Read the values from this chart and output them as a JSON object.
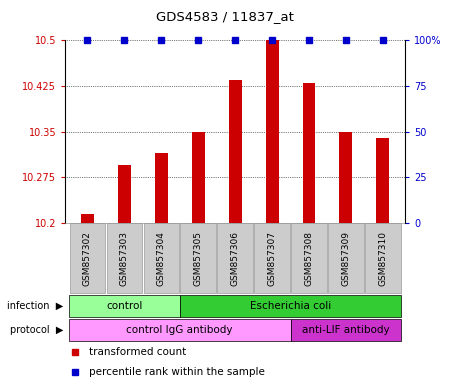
{
  "title": "GDS4583 / 11837_at",
  "samples": [
    "GSM857302",
    "GSM857303",
    "GSM857304",
    "GSM857305",
    "GSM857306",
    "GSM857307",
    "GSM857308",
    "GSM857309",
    "GSM857310"
  ],
  "bar_values": [
    10.215,
    10.295,
    10.315,
    10.35,
    10.435,
    10.5,
    10.43,
    10.35,
    10.34
  ],
  "percentile_values": [
    100,
    100,
    100,
    100,
    100,
    100,
    100,
    100,
    100
  ],
  "bar_color": "#cc0000",
  "percentile_color": "#0000cc",
  "ylim_left": [
    10.2,
    10.5
  ],
  "ylim_right": [
    0,
    100
  ],
  "yticks_left": [
    10.2,
    10.275,
    10.35,
    10.425,
    10.5
  ],
  "yticks_right": [
    0,
    25,
    50,
    75,
    100
  ],
  "ytick_labels_left": [
    "10.2",
    "10.275",
    "10.35",
    "10.425",
    "10.5"
  ],
  "ytick_labels_right": [
    "0",
    "25",
    "50",
    "75",
    "100%"
  ],
  "infection_groups": [
    {
      "label": "control",
      "start": 0,
      "end": 3,
      "color": "#99ff99"
    },
    {
      "label": "Escherichia coli",
      "start": 3,
      "end": 9,
      "color": "#33cc33"
    }
  ],
  "protocol_groups": [
    {
      "label": "control IgG antibody",
      "start": 0,
      "end": 6,
      "color": "#ff99ff"
    },
    {
      "label": "anti-LIF antibody",
      "start": 6,
      "end": 9,
      "color": "#cc33cc"
    }
  ],
  "legend_items": [
    {
      "label": "transformed count",
      "color": "#cc0000"
    },
    {
      "label": "percentile rank within the sample",
      "color": "#0000cc"
    }
  ],
  "background_color": "#ffffff"
}
